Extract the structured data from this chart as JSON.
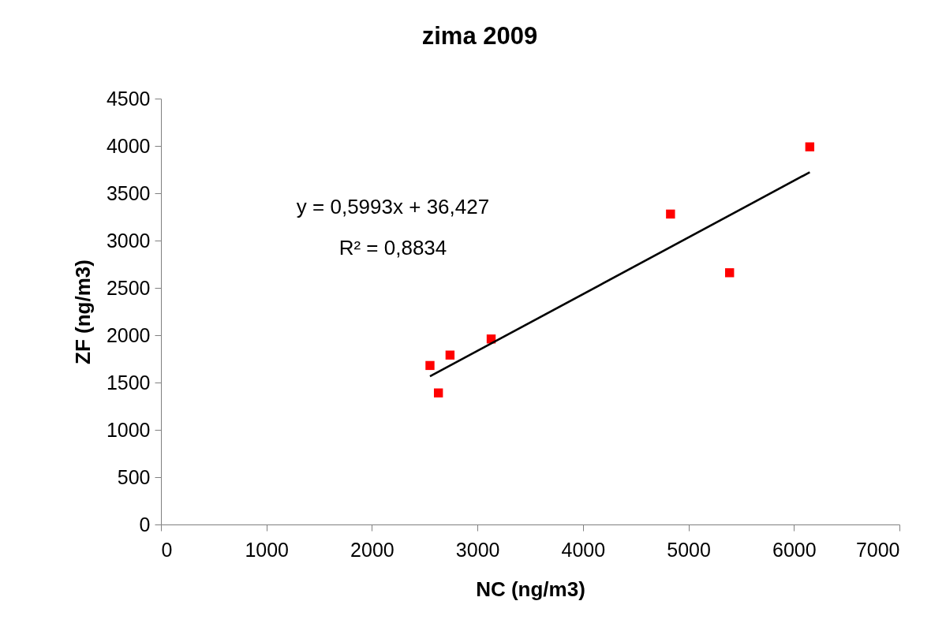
{
  "chart_data": {
    "type": "scatter",
    "title": "zima 2009",
    "xlabel": "NC (ng/m3)",
    "ylabel": "ZF (ng/m3)",
    "x": [
      2550,
      2630,
      2740,
      3130,
      4830,
      5390,
      6150
    ],
    "series": [
      {
        "color": "#ff0000",
        "marker": "square",
        "values": [
          1680,
          1390,
          1790,
          1960,
          3280,
          2660,
          3990
        ]
      },
      {
        "type": "line",
        "color": "#000000",
        "x": [
          2550,
          6150
        ],
        "values": [
          1565,
          3722
        ]
      }
    ],
    "xlim": [
      0,
      7000
    ],
    "xticks": [
      0,
      1000,
      2000,
      3000,
      4000,
      5000,
      6000,
      7000
    ],
    "ylim": [
      0,
      4500
    ],
    "yticks": [
      0,
      500,
      1000,
      1500,
      2000,
      2500,
      3000,
      3500,
      4000,
      4500
    ],
    "annotations": [
      "y = 0,5993x + 36,427",
      "R² = 0,8834"
    ],
    "grid": false
  }
}
